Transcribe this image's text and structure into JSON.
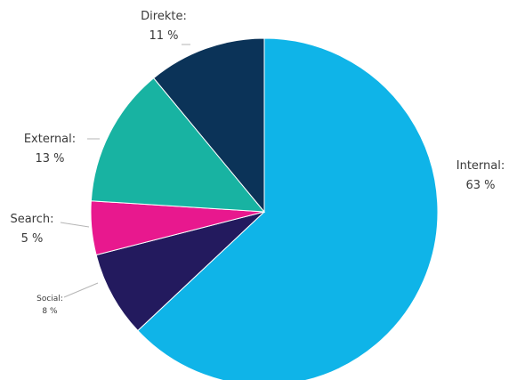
{
  "chart_data": {
    "type": "pie",
    "title": "",
    "slices": [
      {
        "label": "Internal:",
        "value": 63,
        "value_text": "63 %",
        "color": "#0fb4e8"
      },
      {
        "label": "Social:",
        "value": 8,
        "value_text": "8 %",
        "color": "#231a5e"
      },
      {
        "label": "Search:",
        "value": 5,
        "value_text": "5 %",
        "color": "#e8188e"
      },
      {
        "label": "External:",
        "value": 13,
        "value_text": "13 %",
        "color": "#18b3a2"
      },
      {
        "label": "Direkte:",
        "value": 11,
        "value_text": "11 %",
        "color": "#0b3358"
      }
    ],
    "start_angle_deg": 0,
    "direction": "clockwise",
    "legend": "none"
  }
}
